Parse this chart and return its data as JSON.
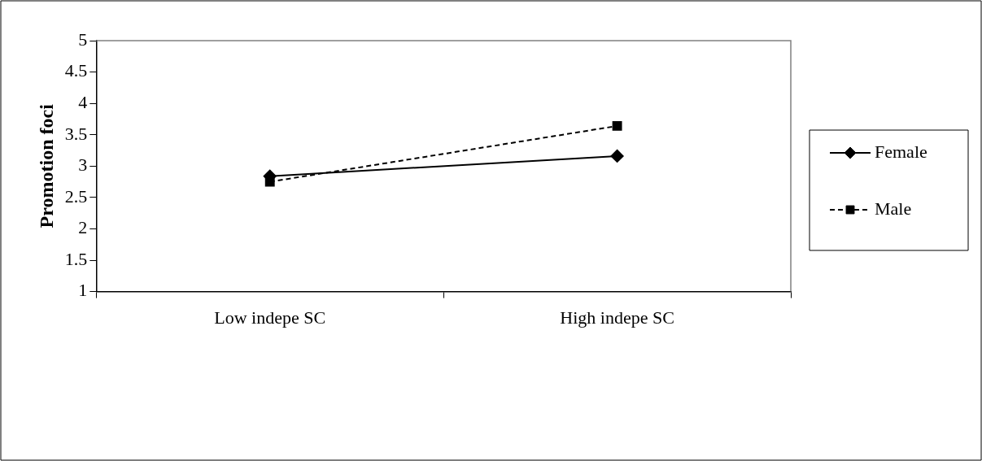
{
  "chart_data": {
    "type": "line",
    "ylabel": "Promotion foci",
    "categories": [
      "Low indepe SC",
      "High indepe SC"
    ],
    "series": [
      {
        "name": "Female",
        "color": "#000000",
        "values": [
          2.84,
          3.16
        ],
        "marker": "diamond",
        "line_style": "solid"
      },
      {
        "name": "Male",
        "color": "#000000",
        "values": [
          2.75,
          3.64
        ],
        "marker": "square",
        "line_style": "dashed"
      }
    ],
    "ylim": [
      1,
      5
    ],
    "yticks": [
      1,
      1.5,
      2,
      2.5,
      3,
      3.5,
      4,
      4.5,
      5
    ],
    "grid": false,
    "legend": "right"
  }
}
